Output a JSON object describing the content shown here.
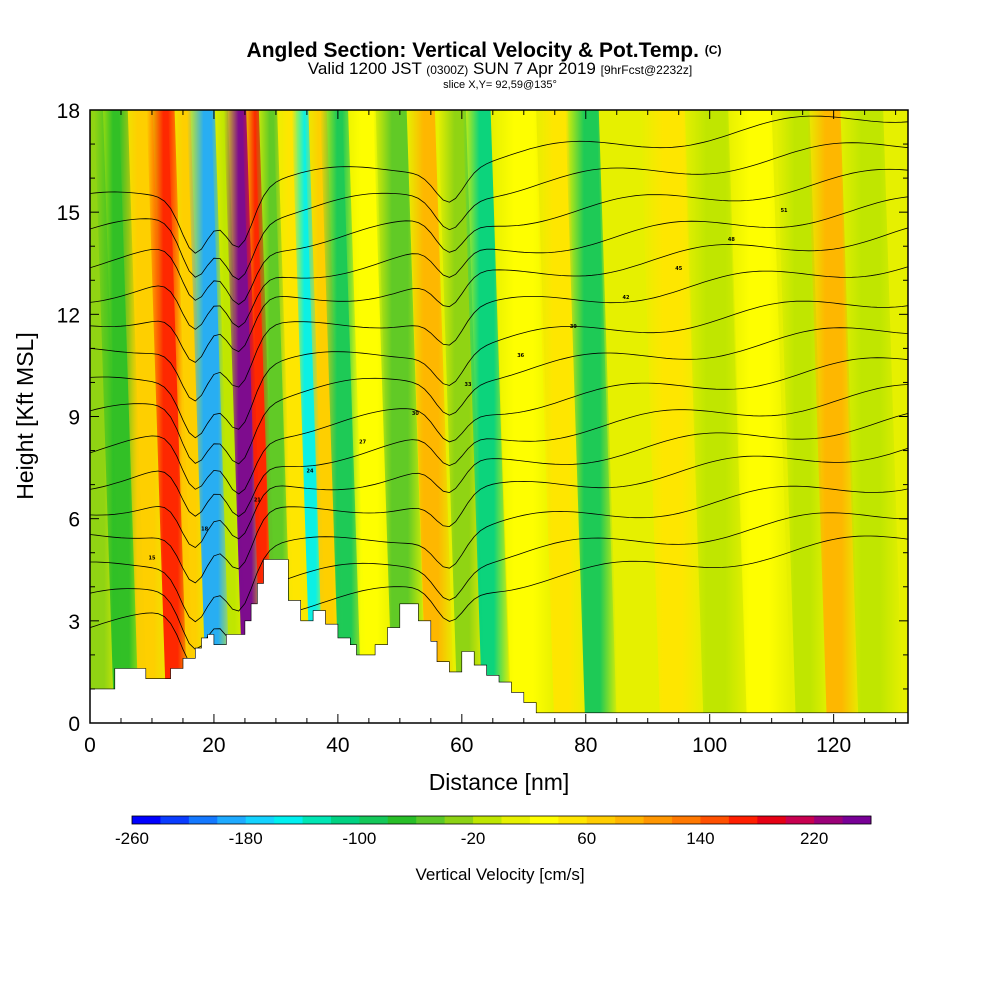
{
  "chart_data": {
    "type": "heatmap",
    "title": "Angled Section: Vertical Velocity & Pot.Temp.",
    "title_mark": "(C)",
    "subtitle": {
      "valid": "Valid 1200 JST",
      "utc": "(0300Z)",
      "date": "SUN 7 Apr 2019",
      "forecast": "[9hrFcst@2232z]"
    },
    "slice_label": "slice X,Y= 92,59@135°",
    "xlabel": "Distance [nm]",
    "ylabel": "Height [Kft MSL]",
    "xlim": [
      0,
      132
    ],
    "ylim": [
      0,
      18
    ],
    "x_ticks": [
      0,
      20,
      40,
      60,
      80,
      100,
      120
    ],
    "x_tick_labels": [
      "0",
      "20",
      "40",
      "60",
      "80",
      "100",
      "120"
    ],
    "y_ticks": [
      0,
      3,
      6,
      9,
      12,
      15,
      18
    ],
    "y_tick_labels": [
      "0",
      "3",
      "6",
      "9",
      "12",
      "15",
      "18"
    ],
    "colorbar": {
      "label": "Vertical Velocity [cm/s]",
      "min": -260,
      "max": 260,
      "step": 20,
      "tick_values": [
        -260,
        -180,
        -100,
        -20,
        60,
        140,
        220
      ],
      "tick_labels": [
        "-260",
        "-180",
        "-100",
        "-20",
        "60",
        "140",
        "220"
      ],
      "colors": [
        "#0000ff",
        "#0a3cff",
        "#1478ff",
        "#1eaaff",
        "#14d2ff",
        "#00f0f0",
        "#00e6b4",
        "#00d282",
        "#14c85a",
        "#28be28",
        "#5ac828",
        "#8cd214",
        "#bee600",
        "#e6f000",
        "#ffff00",
        "#ffe600",
        "#ffcd00",
        "#ffb400",
        "#ff9600",
        "#ff7800",
        "#ff5000",
        "#ff1e00",
        "#e60014",
        "#c80050",
        "#9b0078",
        "#780096"
      ]
    },
    "vertical_velocity_columns": [
      {
        "x": 1,
        "w": 3,
        "w_cms": -40
      },
      {
        "x": 5,
        "w": 3,
        "w_cms": -80
      },
      {
        "x": 9,
        "w": 3,
        "w_cms": 60
      },
      {
        "x": 13,
        "w": 2.5,
        "w_cms": 160
      },
      {
        "x": 16,
        "w": 2,
        "w_cms": 60
      },
      {
        "x": 19.5,
        "w": 2.5,
        "w_cms": -200
      },
      {
        "x": 22.5,
        "w": 1.5,
        "w_cms": -20
      },
      {
        "x": 25,
        "w": 2,
        "w_cms": 240
      },
      {
        "x": 27.5,
        "w": 1.5,
        "w_cms": 160
      },
      {
        "x": 30,
        "w": 2,
        "w_cms": -60
      },
      {
        "x": 33,
        "w": 2,
        "w_cms": 40
      },
      {
        "x": 35.5,
        "w": 1.5,
        "w_cms": -160
      },
      {
        "x": 38,
        "w": 2,
        "w_cms": 60
      },
      {
        "x": 41,
        "w": 2.5,
        "w_cms": -100
      },
      {
        "x": 45,
        "w": 3,
        "w_cms": 20
      },
      {
        "x": 50,
        "w": 3,
        "w_cms": -60
      },
      {
        "x": 55,
        "w": 2.5,
        "w_cms": 80
      },
      {
        "x": 60,
        "w": 2.5,
        "w_cms": -40
      },
      {
        "x": 64,
        "w": 2.5,
        "w_cms": -120
      },
      {
        "x": 70,
        "w": 4,
        "w_cms": 20
      },
      {
        "x": 76,
        "w": 3,
        "w_cms": 40
      },
      {
        "x": 81,
        "w": 3,
        "w_cms": -100
      },
      {
        "x": 87,
        "w": 4,
        "w_cms": 0
      },
      {
        "x": 94,
        "w": 4,
        "w_cms": 40
      },
      {
        "x": 101,
        "w": 4,
        "w_cms": -20
      },
      {
        "x": 108,
        "w": 4,
        "w_cms": 20
      },
      {
        "x": 115,
        "w": 3,
        "w_cms": -20
      },
      {
        "x": 120,
        "w": 3,
        "w_cms": 80
      },
      {
        "x": 126,
        "w": 4,
        "w_cms": -20
      }
    ],
    "terrain_profile": {
      "x": [
        0,
        4,
        4,
        9,
        9,
        13,
        13,
        15,
        15,
        17,
        17,
        18,
        18,
        19,
        19,
        20,
        20,
        22,
        22,
        25,
        25,
        26,
        26,
        27,
        27,
        28,
        28,
        32,
        32,
        34,
        34,
        36,
        36,
        38,
        38,
        40,
        40,
        42,
        42,
        43,
        43,
        46,
        46,
        48,
        48,
        50,
        50,
        53,
        53,
        55,
        55,
        56,
        56,
        58,
        58,
        60,
        60,
        62,
        62,
        64,
        64,
        66,
        66,
        68,
        68,
        70,
        70,
        72,
        72,
        132
      ],
      "kft": [
        1.0,
        1.0,
        1.6,
        1.6,
        1.3,
        1.3,
        1.6,
        1.6,
        1.9,
        1.9,
        2.2,
        2.2,
        2.5,
        2.5,
        2.6,
        2.6,
        2.3,
        2.3,
        2.6,
        2.6,
        3.0,
        3.0,
        3.5,
        3.5,
        4.1,
        4.1,
        4.8,
        4.8,
        3.6,
        3.6,
        3.0,
        3.0,
        3.3,
        3.3,
        2.9,
        2.9,
        2.5,
        2.5,
        2.3,
        2.3,
        2.0,
        2.0,
        2.3,
        2.3,
        2.8,
        2.8,
        3.5,
        3.5,
        3.0,
        3.0,
        2.4,
        2.4,
        1.8,
        1.8,
        1.5,
        1.5,
        2.1,
        2.1,
        1.7,
        1.7,
        1.4,
        1.4,
        1.2,
        1.2,
        0.9,
        0.9,
        0.6,
        0.6,
        0.3,
        0.3
      ]
    },
    "pot_temp_contours": {
      "base_levels_kft": [
        5.2,
        6.0,
        6.9,
        7.9,
        8.7,
        9.5,
        10.4,
        11.4,
        12.3,
        13.3,
        14.2,
        15.0,
        15.9,
        16.8,
        17.7
      ],
      "dip_centers_nm": [
        17,
        24,
        58
      ],
      "label_values": [
        "15",
        "18",
        "21",
        "24",
        "27",
        "30",
        "33",
        "36",
        "39",
        "42",
        "45",
        "48",
        "51"
      ]
    }
  }
}
